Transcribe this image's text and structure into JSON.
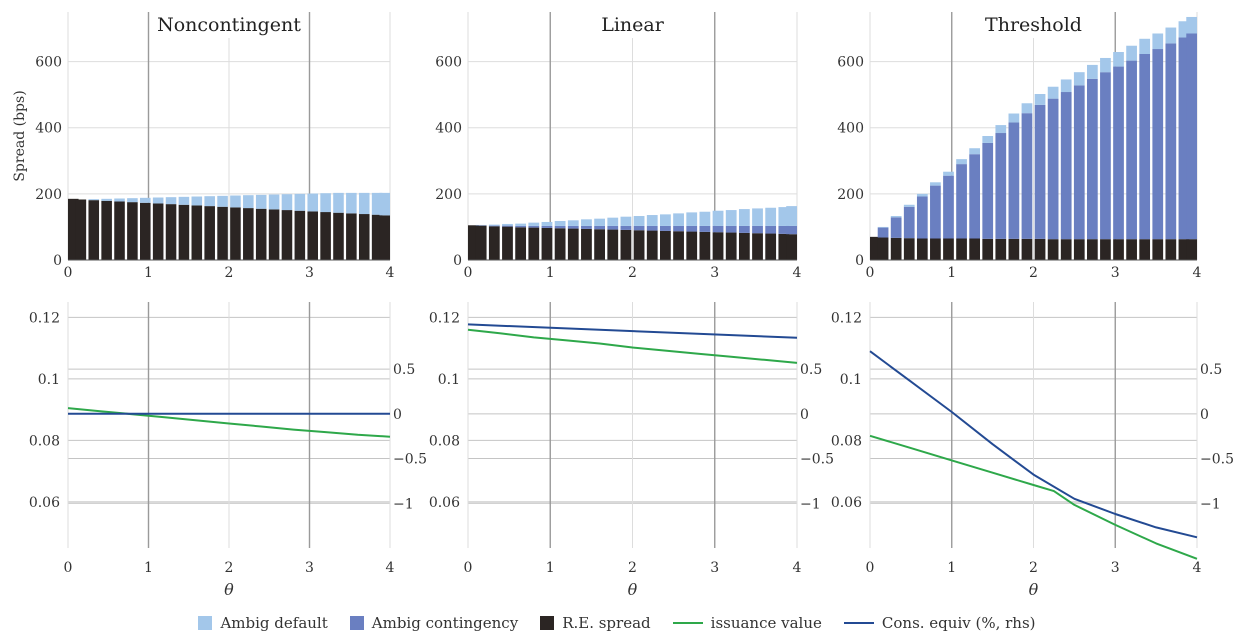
{
  "legend": [
    {
      "label": "Ambig default",
      "color": "#a3c7ea",
      "kind": "swatch"
    },
    {
      "label": "Ambig contingency",
      "color": "#6a7fc1",
      "kind": "swatch"
    },
    {
      "label": "R.E. spread",
      "color": "#2b2523",
      "kind": "swatch"
    },
    {
      "label": "issuance value",
      "color": "#2ea84a",
      "kind": "line"
    },
    {
      "label": "Cons. equiv (%, rhs)",
      "color": "#234a93",
      "kind": "line"
    }
  ],
  "chart_data": [
    {
      "type": "bar",
      "stacked": true,
      "title": "Noncontingent",
      "ylabel": "Spread (bps)",
      "xlabel": "",
      "xlim": [
        0,
        4
      ],
      "ylim": [
        0,
        750
      ],
      "xticks": [
        "0",
        "1",
        "2",
        "3",
        "4"
      ],
      "yticks": [
        "0",
        "200",
        "400",
        "600"
      ],
      "x": [
        0,
        0.16,
        0.32,
        0.48,
        0.64,
        0.8,
        0.96,
        1.12,
        1.28,
        1.44,
        1.6,
        1.76,
        1.92,
        2.08,
        2.24,
        2.4,
        2.56,
        2.72,
        2.88,
        3.04,
        3.2,
        3.36,
        3.52,
        3.68,
        3.84,
        4.0
      ],
      "series": [
        {
          "name": "R.E. spread",
          "values": [
            185,
            183,
            181,
            179,
            177,
            175,
            173,
            171,
            169,
            167,
            165,
            163,
            161,
            159,
            157,
            155,
            153,
            151,
            149,
            147,
            145,
            143,
            141,
            139,
            137,
            135
          ]
        },
        {
          "name": "Ambig contingency",
          "values": [
            0,
            0,
            0,
            0,
            0,
            0,
            0,
            0,
            0,
            0,
            0,
            0,
            0,
            0,
            0,
            0,
            0,
            0,
            0,
            0,
            0,
            0,
            0,
            0,
            0,
            0
          ]
        },
        {
          "name": "Ambig default",
          "values": [
            0,
            0,
            3,
            6,
            9,
            12,
            15,
            18,
            21,
            24,
            27,
            30,
            33,
            36,
            39,
            42,
            45,
            48,
            51,
            54,
            57,
            60,
            62,
            64,
            66,
            68
          ]
        }
      ]
    },
    {
      "type": "bar",
      "stacked": true,
      "title": "Linear",
      "ylabel": "",
      "xlabel": "",
      "xlim": [
        0,
        4
      ],
      "ylim": [
        0,
        750
      ],
      "xticks": [
        "0",
        "1",
        "2",
        "3",
        "4"
      ],
      "yticks": [
        "0",
        "200",
        "400",
        "600"
      ],
      "x": [
        0,
        0.16,
        0.32,
        0.48,
        0.64,
        0.8,
        0.96,
        1.12,
        1.28,
        1.44,
        1.6,
        1.76,
        1.92,
        2.08,
        2.24,
        2.4,
        2.56,
        2.72,
        2.88,
        3.04,
        3.2,
        3.36,
        3.52,
        3.68,
        3.84,
        4.0
      ],
      "series": [
        {
          "name": "R.E. spread",
          "values": [
            105,
            104,
            102,
            101,
            99,
            98,
            97,
            96,
            95,
            94,
            93,
            92,
            91,
            90,
            89,
            88,
            87,
            86,
            85,
            84,
            83,
            82,
            81,
            80,
            79,
            78
          ]
        },
        {
          "name": "Ambig contingency",
          "values": [
            0,
            1,
            2,
            3,
            4,
            5,
            6,
            7,
            8,
            9,
            10,
            11,
            12,
            13,
            14,
            15,
            16,
            17,
            18,
            19,
            20,
            21,
            22,
            23,
            24,
            25
          ]
        },
        {
          "name": "Ambig default",
          "values": [
            0,
            1,
            3,
            5,
            7,
            10,
            12,
            15,
            17,
            20,
            22,
            25,
            28,
            30,
            33,
            35,
            38,
            41,
            43,
            46,
            48,
            51,
            53,
            55,
            57,
            60
          ]
        }
      ]
    },
    {
      "type": "bar",
      "stacked": true,
      "title": "Threshold",
      "ylabel": "",
      "xlabel": "",
      "xlim": [
        0,
        4
      ],
      "ylim": [
        0,
        750
      ],
      "xticks": [
        "0",
        "1",
        "2",
        "3",
        "4"
      ],
      "yticks": [
        "0",
        "200",
        "400",
        "600"
      ],
      "x": [
        0,
        0.16,
        0.32,
        0.48,
        0.64,
        0.8,
        0.96,
        1.12,
        1.28,
        1.44,
        1.6,
        1.76,
        1.92,
        2.08,
        2.24,
        2.4,
        2.56,
        2.72,
        2.88,
        3.04,
        3.2,
        3.36,
        3.52,
        3.68,
        3.84,
        4.0
      ],
      "series": [
        {
          "name": "R.E. spread",
          "values": [
            70,
            68,
            67,
            66,
            65,
            65,
            65,
            65,
            65,
            64,
            64,
            64,
            64,
            64,
            63,
            63,
            63,
            63,
            63,
            63,
            63,
            63,
            63,
            63,
            63,
            63
          ]
        },
        {
          "name": "Ambig contingency",
          "values": [
            0,
            30,
            62,
            95,
            127,
            160,
            190,
            225,
            255,
            290,
            320,
            352,
            380,
            405,
            425,
            445,
            465,
            485,
            505,
            522,
            540,
            560,
            575,
            592,
            610,
            622
          ]
        },
        {
          "name": "Ambig default",
          "values": [
            0,
            2,
            4,
            6,
            8,
            10,
            12,
            15,
            18,
            21,
            24,
            27,
            30,
            33,
            36,
            38,
            40,
            42,
            43,
            44,
            45,
            46,
            47,
            48,
            49,
            50
          ]
        }
      ]
    },
    {
      "type": "line",
      "title": "",
      "ylabel": "",
      "xlabel": "θ",
      "xlim": [
        0,
        4
      ],
      "ylim": [
        0.045,
        0.125
      ],
      "y2lim": [
        -1.5,
        1.25
      ],
      "xticks": [
        "0",
        "1",
        "2",
        "3",
        "4"
      ],
      "yticks": [
        "0.06",
        "0.08",
        "0.1",
        "0.12"
      ],
      "y2ticks": [
        "−1",
        "−0.5",
        "0",
        "0.5"
      ],
      "series": [
        {
          "name": "issuance value",
          "axis": "left",
          "x": [
            0,
            0.4,
            0.8,
            1.2,
            1.6,
            2.0,
            2.4,
            2.8,
            3.2,
            3.6,
            4.0
          ],
          "values": [
            0.0905,
            0.0895,
            0.0885,
            0.0875,
            0.0865,
            0.0855,
            0.0845,
            0.0835,
            0.0827,
            0.0818,
            0.0812
          ]
        },
        {
          "name": "Cons. equiv (%, rhs)",
          "axis": "right",
          "x": [
            0,
            4
          ],
          "values": [
            0.0,
            0.0
          ]
        }
      ]
    },
    {
      "type": "line",
      "title": "",
      "ylabel": "",
      "xlabel": "θ",
      "xlim": [
        0,
        4
      ],
      "ylim": [
        0.045,
        0.125
      ],
      "y2lim": [
        -1.5,
        1.25
      ],
      "xticks": [
        "0",
        "1",
        "2",
        "3",
        "4"
      ],
      "yticks": [
        "0.06",
        "0.08",
        "0.1",
        "0.12"
      ],
      "y2ticks": [
        "−1",
        "−0.5",
        "0",
        "0.5"
      ],
      "series": [
        {
          "name": "issuance value",
          "axis": "left",
          "x": [
            0,
            0.4,
            0.8,
            1.2,
            1.6,
            2.0,
            2.4,
            2.8,
            3.2,
            3.6,
            4.0
          ],
          "values": [
            0.116,
            0.1148,
            0.1135,
            0.1125,
            0.1115,
            0.1102,
            0.1092,
            0.1082,
            0.1072,
            0.1062,
            0.1052
          ]
        },
        {
          "name": "Cons. equiv (%, rhs)",
          "axis": "right",
          "x": [
            0,
            4
          ],
          "values": [
            1.0,
            0.85
          ]
        }
      ]
    },
    {
      "type": "line",
      "title": "",
      "ylabel": "",
      "xlabel": "θ",
      "xlim": [
        0,
        4
      ],
      "ylim": [
        0.045,
        0.125
      ],
      "y2lim": [
        -1.5,
        1.25
      ],
      "xticks": [
        "0",
        "1",
        "2",
        "3",
        "4"
      ],
      "yticks": [
        "0.06",
        "0.08",
        "0.1",
        "0.12"
      ],
      "y2ticks": [
        "−1",
        "−0.5",
        "0",
        "0.5"
      ],
      "series": [
        {
          "name": "issuance value",
          "axis": "left",
          "x": [
            0,
            0.5,
            1.0,
            1.5,
            2.0,
            2.25,
            2.5,
            3.0,
            3.5,
            4.0
          ],
          "values": [
            0.0815,
            0.0775,
            0.0735,
            0.0695,
            0.0655,
            0.0635,
            0.059,
            0.0525,
            0.0465,
            0.0415
          ]
        },
        {
          "name": "Cons. equiv (%, rhs)",
          "axis": "right",
          "x": [
            0,
            0.5,
            1.0,
            1.5,
            2.0,
            2.5,
            3.0,
            3.5,
            4.0
          ],
          "values": [
            0.7,
            0.36,
            0.02,
            -0.34,
            -0.68,
            -0.95,
            -1.12,
            -1.27,
            -1.38
          ]
        }
      ]
    }
  ]
}
